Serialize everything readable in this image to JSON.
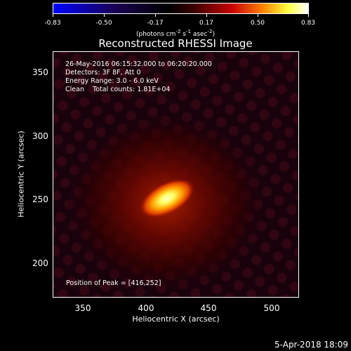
{
  "colorbar": {
    "ticks": [
      "-0.83",
      "-0.50",
      "-0.17",
      "0.17",
      "0.50",
      "0.83"
    ],
    "unit_prefix": "(photons cm",
    "unit_sup1": "-2",
    "unit_mid": " s",
    "unit_sup2": "-1",
    "unit_mid2": " asec",
    "unit_sup3": "-2",
    "unit_suffix": ")"
  },
  "title": "Reconstructed RHESSI Image",
  "info": {
    "line1": "26-May-2016 06:15:32.000 to 06:20:20.000",
    "line2": "Detectors: 3F 8F, Att 0",
    "line3": "Energy Range: 3.0 - 6.0 keV",
    "line4": "Clean    Total counts: 1.81E+04",
    "peak": "Position of Peak = [416,252]"
  },
  "axes": {
    "xlabel": "Heliocentric X (arcsec)",
    "ylabel": "Heliocentric Y (arcsec)",
    "xticks": [
      "350",
      "400",
      "450",
      "500"
    ],
    "yticks": [
      "350",
      "300",
      "250",
      "200"
    ],
    "xrange": [
      325,
      522
    ],
    "yrange": [
      172,
      369
    ]
  },
  "source": {
    "peak_x": 416,
    "peak_y": 252
  },
  "timestamp": "5-Apr-2018 18:09",
  "colors": {
    "background": "#000000",
    "colormap": "blue-black-red-yellow-white"
  }
}
